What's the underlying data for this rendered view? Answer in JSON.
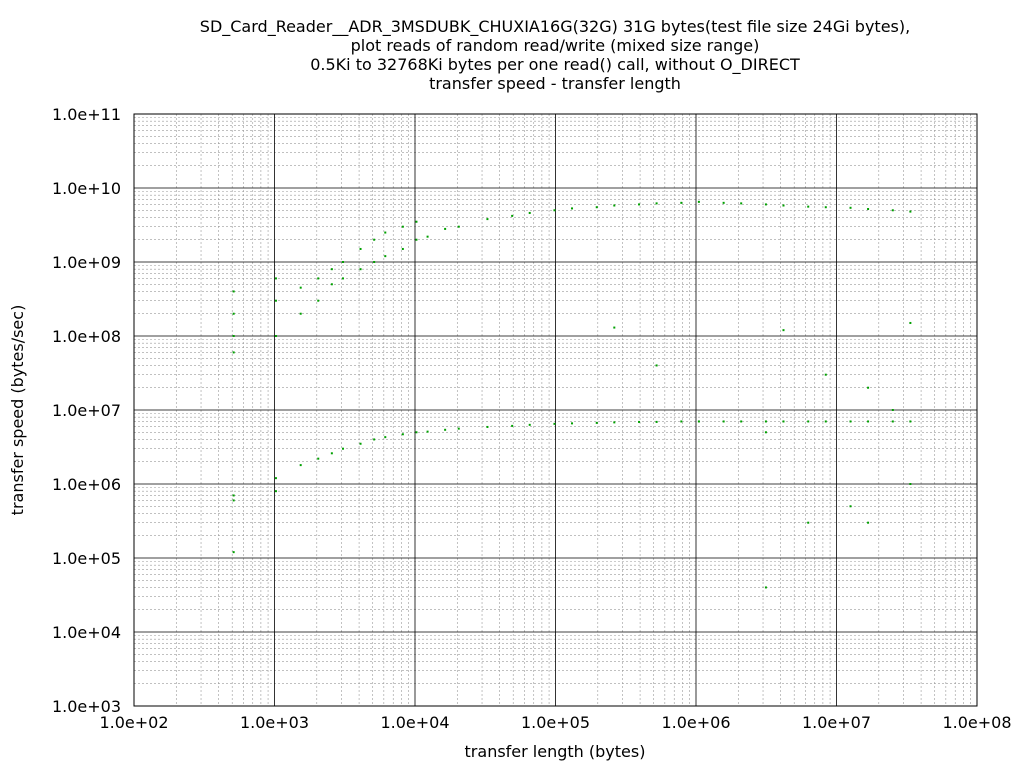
{
  "chart_data": {
    "type": "scatter",
    "title": [
      "SD_Card_Reader__ADR_3MSDUBK_CHUXIA16G(32G) 31G bytes(test file size 24Gi bytes),",
      "plot reads of random read/write (mixed size range)",
      "0.5Ki to 32768Ki bytes per one read() call, without O_DIRECT",
      "transfer speed - transfer length"
    ],
    "xlabel": "transfer length (bytes)",
    "ylabel": "transfer speed (bytes/sec)",
    "x_scale": "log",
    "y_scale": "log",
    "xlim": [
      100,
      100000000
    ],
    "ylim": [
      1000,
      100000000000
    ],
    "x_ticks": [
      "1.0e+02",
      "1.0e+03",
      "1.0e+04",
      "1.0e+05",
      "1.0e+06",
      "1.0e+07",
      "1.0e+08"
    ],
    "y_ticks": [
      "1.0e+03",
      "1.0e+04",
      "1.0e+05",
      "1.0e+06",
      "1.0e+07",
      "1.0e+08",
      "1.0e+09",
      "1.0e+10",
      "1.0e+11"
    ],
    "grid": true,
    "marker_color": "#00a000",
    "series": [
      {
        "values": [
          [
            512,
            100000000
          ],
          [
            512,
            200000000
          ],
          [
            512,
            400000000
          ],
          [
            512,
            60000000
          ],
          [
            512,
            600000
          ],
          [
            512,
            700000
          ],
          [
            512,
            120000
          ],
          [
            1024,
            100000000
          ],
          [
            1024,
            300000000
          ],
          [
            1024,
            600000000
          ],
          [
            1024,
            1200000
          ],
          [
            1024,
            800000
          ],
          [
            1536,
            200000000
          ],
          [
            1536,
            450000000
          ],
          [
            1536,
            1800000
          ],
          [
            2048,
            300000000
          ],
          [
            2048,
            600000000
          ],
          [
            2048,
            2200000
          ],
          [
            2560,
            500000000
          ],
          [
            2560,
            800000000
          ],
          [
            2560,
            2600000
          ],
          [
            3072,
            600000000
          ],
          [
            3072,
            1000000000
          ],
          [
            3072,
            3000000
          ],
          [
            4096,
            800000000
          ],
          [
            4096,
            1500000000
          ],
          [
            4096,
            3500000
          ],
          [
            5120,
            1000000000
          ],
          [
            5120,
            2000000000
          ],
          [
            5120,
            4000000
          ],
          [
            6144,
            1200000000
          ],
          [
            6144,
            2500000000
          ],
          [
            6144,
            4300000
          ],
          [
            8192,
            1500000000
          ],
          [
            8192,
            3000000000
          ],
          [
            8192,
            4700000
          ],
          [
            10240,
            2000000000
          ],
          [
            10240,
            3500000000
          ],
          [
            10240,
            5000000
          ],
          [
            12288,
            2200000000
          ],
          [
            12288,
            5100000
          ],
          [
            16384,
            2800000000
          ],
          [
            16384,
            5400000
          ],
          [
            20480,
            3000000000
          ],
          [
            20480,
            5600000
          ],
          [
            32768,
            3800000000
          ],
          [
            32768,
            5900000
          ],
          [
            49152,
            4200000000
          ],
          [
            49152,
            6100000
          ],
          [
            65536,
            4600000000
          ],
          [
            65536,
            6300000
          ],
          [
            98304,
            5000000000
          ],
          [
            98304,
            6500000
          ],
          [
            131072,
            5300000000
          ],
          [
            131072,
            6600000
          ],
          [
            196608,
            5500000000
          ],
          [
            196608,
            6700000
          ],
          [
            262144,
            5800000000
          ],
          [
            262144,
            6800000
          ],
          [
            262144,
            130000000
          ],
          [
            393216,
            6000000000
          ],
          [
            393216,
            6900000
          ],
          [
            524288,
            6200000000
          ],
          [
            524288,
            6900000
          ],
          [
            524288,
            40000000
          ],
          [
            786432,
            6300000000
          ],
          [
            786432,
            7000000
          ],
          [
            1048576,
            6500000000
          ],
          [
            1048576,
            7000000
          ],
          [
            1572864,
            6300000000
          ],
          [
            1572864,
            7000000
          ],
          [
            2097152,
            6200000000
          ],
          [
            2097152,
            7000000
          ],
          [
            3145728,
            6000000000
          ],
          [
            3145728,
            7000000
          ],
          [
            3145728,
            5000000
          ],
          [
            3145728,
            40000
          ],
          [
            4194304,
            5800000000
          ],
          [
            4194304,
            7000000
          ],
          [
            4194304,
            120000000
          ],
          [
            6291456,
            5600000000
          ],
          [
            6291456,
            7000000
          ],
          [
            6291456,
            300000
          ],
          [
            8388608,
            5500000000
          ],
          [
            8388608,
            7000000
          ],
          [
            8388608,
            30000000
          ],
          [
            12582912,
            5400000000
          ],
          [
            12582912,
            7000000
          ],
          [
            12582912,
            500000
          ],
          [
            16777216,
            5200000000
          ],
          [
            16777216,
            7000000
          ],
          [
            16777216,
            20000000
          ],
          [
            16777216,
            300000
          ],
          [
            25165824,
            5000000000
          ],
          [
            25165824,
            7000000
          ],
          [
            25165824,
            10000000
          ],
          [
            33554432,
            4800000000
          ],
          [
            33554432,
            7000000
          ],
          [
            33554432,
            150000000
          ],
          [
            33554432,
            1000000
          ]
        ]
      }
    ]
  }
}
